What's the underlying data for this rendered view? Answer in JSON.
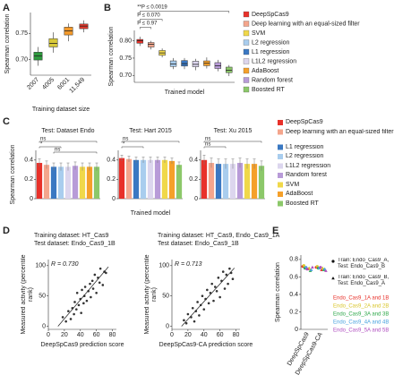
{
  "chart_data": [
    {
      "type": "box",
      "panel_label": "A",
      "y_label": "Spearman correlation",
      "x_label": "Training dataset size",
      "categories": [
        "2007",
        "4005",
        "6001",
        "11,549"
      ],
      "colors": [
        "#2e9a3e",
        "#d8c93a",
        "#f39a2b",
        "#e43a2d"
      ],
      "boxes": [
        {
          "whisker_low": 0.688,
          "q1": 0.699,
          "median": 0.707,
          "q3": 0.714,
          "whisker_high": 0.724
        },
        {
          "whisker_low": 0.713,
          "q1": 0.724,
          "median": 0.731,
          "q3": 0.74,
          "whisker_high": 0.752
        },
        {
          "whisker_low": 0.735,
          "q1": 0.747,
          "median": 0.755,
          "q3": 0.762,
          "whisker_high": 0.769
        },
        {
          "whisker_low": 0.752,
          "q1": 0.759,
          "median": 0.764,
          "q3": 0.768,
          "whisker_high": 0.775
        }
      ],
      "ylim": [
        0.67,
        0.79
      ],
      "yticks": [
        {
          "value": 0.7,
          "label": "0.70"
        },
        0.75
      ]
    },
    {
      "type": "box",
      "panel_label": "B",
      "y_label": "Spearman correlation",
      "x_label": "Trained model",
      "legend": "right",
      "categories": [
        "DeepSpCas9",
        "Deep learning with an equal-sized filter",
        "SVM",
        "L2 regression",
        "L1 regression",
        "L1L2 regression",
        "AdaBoost",
        "Random forest",
        "Boosted RT"
      ],
      "colors": [
        "#e8312a",
        "#f4a58c",
        "#f0d84a",
        "#a9cdee",
        "#3a78c2",
        "#dcd6ee",
        "#f5a02a",
        "#b89bd8",
        "#8cc86a"
      ],
      "boxes": [
        {
          "whisker_low": 0.785,
          "q1": 0.793,
          "median": 0.8,
          "q3": 0.804,
          "whisker_high": 0.812
        },
        {
          "whisker_low": 0.775,
          "q1": 0.782,
          "median": 0.79,
          "q3": 0.795,
          "whisker_high": 0.8
        },
        {
          "whisker_low": 0.752,
          "q1": 0.758,
          "median": 0.765,
          "q3": 0.772,
          "whisker_high": 0.778
        },
        {
          "whisker_low": 0.718,
          "q1": 0.726,
          "median": 0.733,
          "q3": 0.742,
          "whisker_high": 0.75
        },
        {
          "whisker_low": 0.718,
          "q1": 0.727,
          "median": 0.734,
          "q3": 0.743,
          "whisker_high": 0.75
        },
        {
          "whisker_low": 0.715,
          "q1": 0.725,
          "median": 0.732,
          "q3": 0.741,
          "whisker_high": 0.748
        },
        {
          "whisker_low": 0.72,
          "q1": 0.728,
          "median": 0.735,
          "q3": 0.742,
          "whisker_high": 0.752
        },
        {
          "whisker_low": 0.712,
          "q1": 0.72,
          "median": 0.728,
          "q3": 0.737,
          "whisker_high": 0.745
        },
        {
          "whisker_low": 0.698,
          "q1": 0.708,
          "median": 0.715,
          "q3": 0.724,
          "whisker_high": 0.73
        }
      ],
      "annotations": [
        "**P ≤ 0.0019",
        "P ≤ 0.070",
        "P ≤ 0.97"
      ],
      "ylim": [
        0.68,
        0.83
      ],
      "yticks": [
        {
          "value": 0.7,
          "label": "0.70"
        },
        0.75,
        {
          "value": 0.8,
          "label": "0.80"
        }
      ]
    },
    {
      "type": "bar",
      "panel_label": "C",
      "title": "Test: Dataset Endo",
      "y_label": "Spearman correlation",
      "x_label": "Trained model",
      "legend": "right",
      "categories": [
        "DeepSpCas9",
        "Deep learning with an equal-sized filter",
        "L1 regression",
        "L2 regression",
        "L1L2 regression",
        "Random forest",
        "SVM",
        "AdaBoost",
        "Boosted RT"
      ],
      "colors": [
        "#e8312a",
        "#f4a58c",
        "#3a78c2",
        "#a9cdee",
        "#dcd6ee",
        "#b89bd8",
        "#f0d84a",
        "#f5a02a",
        "#8cc86a"
      ],
      "values": [
        0.37,
        0.35,
        0.33,
        0.33,
        0.33,
        0.34,
        0.33,
        0.33,
        0.33
      ],
      "errors": [
        0.04,
        0.04,
        0.04,
        0.04,
        0.04,
        0.04,
        0.04,
        0.04,
        0.04
      ],
      "annotations": [
        "ns",
        "*",
        "ns"
      ],
      "ylim": [
        0,
        0.5
      ],
      "yticks": [
        0,
        0.2,
        0.4
      ]
    },
    {
      "type": "bar",
      "title": "Test: Hart 2015",
      "colors": [
        "#e8312a",
        "#f4a58c",
        "#3a78c2",
        "#a9cdee",
        "#dcd6ee",
        "#b89bd8",
        "#f0d84a",
        "#f5a02a",
        "#8cc86a"
      ],
      "values": [
        0.42,
        0.41,
        0.4,
        0.4,
        0.4,
        0.4,
        0.4,
        0.39,
        0.35
      ],
      "errors": [
        0.03,
        0.03,
        0.03,
        0.03,
        0.03,
        0.03,
        0.03,
        0.03,
        0.03
      ],
      "annotations": [
        "ns",
        "*"
      ],
      "ylim": [
        0,
        0.5
      ],
      "yticks": [
        0,
        0.2,
        0.4
      ]
    },
    {
      "type": "bar",
      "title": "Test: Xu 2015",
      "colors": [
        "#e8312a",
        "#f4a58c",
        "#3a78c2",
        "#a9cdee",
        "#dcd6ee",
        "#b89bd8",
        "#f0d84a",
        "#f5a02a",
        "#8cc86a"
      ],
      "values": [
        0.4,
        0.37,
        0.36,
        0.36,
        0.36,
        0.37,
        0.36,
        0.36,
        0.34
      ],
      "errors": [
        0.05,
        0.05,
        0.05,
        0.05,
        0.05,
        0.05,
        0.05,
        0.05,
        0.05
      ],
      "annotations": [
        "ns",
        "ns"
      ],
      "ylim": [
        0,
        0.5
      ],
      "yticks": [
        0,
        0.2,
        0.4
      ]
    },
    {
      "type": "scatter",
      "panel_label": "D",
      "title": "Training dataset: HT_Cas9",
      "subtitle": "Test dataset: Endo_Cas9_1B",
      "annotation": "R = 0.730",
      "x_label": "DeepSpCas9 prediction score",
      "y_label": "Measured activity (percentile rank)",
      "color": "#333",
      "x": [
        18,
        22,
        25,
        28,
        30,
        32,
        33,
        35,
        36,
        38,
        40,
        41,
        42,
        44,
        45,
        46,
        48,
        50,
        52,
        53,
        55,
        56,
        58,
        60,
        62,
        64,
        65,
        68,
        70,
        72
      ],
      "y": [
        15,
        8,
        25,
        12,
        30,
        20,
        40,
        28,
        55,
        35,
        45,
        22,
        60,
        38,
        50,
        65,
        42,
        58,
        70,
        48,
        75,
        62,
        85,
        55,
        80,
        72,
        95,
        68,
        90,
        88
      ],
      "trend_line": {
        "x": [
          12,
          75
        ],
        "y": [
          0,
          98
        ]
      },
      "xlim": [
        0,
        85
      ],
      "ylim": [
        -5,
        110
      ],
      "xticks": [
        0,
        20,
        40,
        60,
        80
      ],
      "yticks": [
        0,
        50,
        100
      ]
    },
    {
      "type": "scatter",
      "title": "Training dataset: HT_Cas9, Endo_Cas9_1A",
      "subtitle": "Test dataset: Endo_Cas9_1B",
      "annotation": "R = 0.713",
      "x_label": "DeepSpCas9-CA prediction score",
      "y_label": "Measured activity (percentile rank)",
      "color": "#333",
      "x": [
        15,
        18,
        20,
        24,
        26,
        28,
        30,
        32,
        34,
        36,
        38,
        40,
        42,
        44,
        46,
        48,
        50,
        52,
        54,
        56,
        58,
        60,
        62,
        64,
        66,
        68,
        70,
        72,
        74,
        76
      ],
      "y": [
        10,
        5,
        20,
        15,
        30,
        8,
        25,
        40,
        18,
        35,
        50,
        28,
        45,
        60,
        38,
        55,
        70,
        42,
        65,
        58,
        80,
        48,
        75,
        90,
        62,
        85,
        70,
        95,
        88,
        78
      ],
      "trend_line": {
        "x": [
          12,
          78
        ],
        "y": [
          0,
          96
        ]
      },
      "xlim": [
        0,
        85
      ],
      "ylim": [
        -5,
        110
      ],
      "xticks": [
        0,
        20,
        40,
        60,
        80
      ],
      "yticks": [
        0,
        50,
        100
      ]
    },
    {
      "type": "dot",
      "panel_label": "E",
      "y_label": "Spearman correlation",
      "categories": [
        "DeepSpCas9",
        "DeepSpCas9-CA"
      ],
      "markers": [
        {
          "shape": "circle",
          "label": "Train: Endo_Cas9_A, Test: Endo_Cas9_B"
        },
        {
          "shape": "triangle",
          "label": "Train: Endo_Cas9_B, Test: Endo_Cas9_A"
        }
      ],
      "series": [
        {
          "name": "Endo_Cas9_1A and 1B",
          "color": "#e8312a",
          "values": [
            0.72,
            0.71
          ],
          "values_reversed": [
            0.69,
            0.68
          ]
        },
        {
          "name": "Endo_Cas9_2A and 2B",
          "color": "#d9c62b",
          "values": [
            0.73,
            0.72
          ],
          "values_reversed": [
            0.7,
            0.7
          ]
        },
        {
          "name": "Endo_Cas9_3A and 3B",
          "color": "#2ea84a",
          "values": [
            0.7,
            0.7
          ],
          "values_reversed": [
            0.67,
            0.68
          ]
        },
        {
          "name": "Endo_Cas9_4A and 4B",
          "color": "#4aa3df",
          "values": [
            0.71,
            0.7
          ],
          "values_reversed": [
            0.68,
            0.69
          ]
        },
        {
          "name": "Endo_Cas9_5A and 5B",
          "color": "#b04fc0",
          "values": [
            0.69,
            0.71
          ],
          "values_reversed": [
            0.71,
            0.67
          ]
        }
      ],
      "ylim": [
        0,
        0.85
      ],
      "yticks": [
        0,
        0.2,
        0.4,
        0.6,
        0.8
      ]
    }
  ]
}
